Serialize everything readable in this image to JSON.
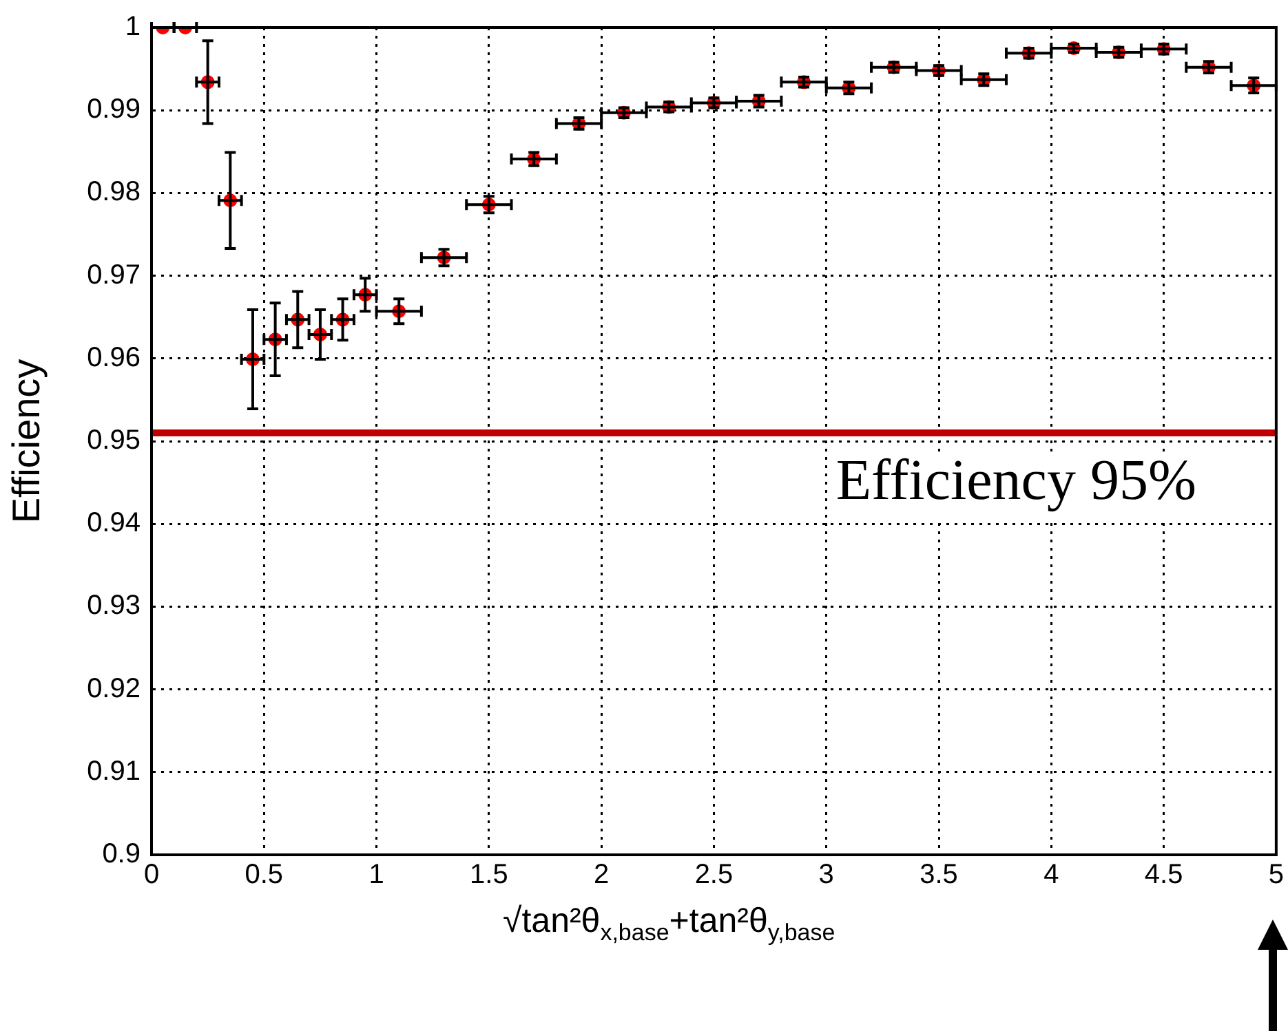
{
  "chart_data": {
    "type": "scatter",
    "xlabel": "√tan²θ$_{x,base}$+tan²θ$_{y,base}$",
    "ylabel": "Efficiency",
    "x": [
      0.05,
      0.15,
      0.25,
      0.35,
      0.45,
      0.55,
      0.65,
      0.75,
      0.85,
      0.95,
      1.1,
      1.3,
      1.5,
      1.7,
      1.9,
      2.1,
      2.3,
      2.5,
      2.7,
      2.9,
      3.1,
      3.3,
      3.5,
      3.7,
      3.9,
      4.1,
      4.3,
      4.5,
      4.7,
      4.9
    ],
    "series": [
      {
        "color": "#ff0000",
        "values": [
          1.0,
          1.0,
          0.9934,
          0.9791,
          0.9599,
          0.9623,
          0.9647,
          0.9629,
          0.9647,
          0.9677,
          0.9657,
          0.9722,
          0.9786,
          0.9841,
          0.9884,
          0.9897,
          0.9904,
          0.9909,
          0.9911,
          0.9934,
          0.9927,
          0.9952,
          0.9948,
          0.9937,
          0.9969,
          0.9975,
          0.997,
          0.9974,
          0.9952,
          0.993
        ],
        "errors": [
          null,
          null,
          0.005,
          0.0058,
          0.006,
          0.0044,
          0.0034,
          0.003,
          0.0025,
          0.002,
          0.0015,
          0.001,
          0.001,
          0.0008,
          0.0007,
          0.0006,
          0.0006,
          0.0006,
          0.0007,
          0.0006,
          0.0007,
          0.0006,
          0.0006,
          0.0007,
          0.0006,
          0.0005,
          0.0006,
          0.0006,
          0.0007,
          0.0009
        ],
        "xerrors": [
          0.05,
          0.05,
          0.05,
          0.05,
          0.05,
          0.05,
          0.05,
          0.05,
          0.05,
          0.05,
          0.1,
          0.1,
          0.1,
          0.1,
          0.1,
          0.1,
          0.1,
          0.1,
          0.1,
          0.1,
          0.1,
          0.1,
          0.1,
          0.1,
          0.1,
          0.1,
          0.1,
          0.1,
          0.1,
          0.1
        ]
      }
    ],
    "xlim": [
      0,
      5
    ],
    "xticks": [
      0,
      0.5,
      1,
      1.5,
      2,
      2.5,
      3,
      3.5,
      4,
      4.5,
      5
    ],
    "ylim": [
      0.9,
      1
    ],
    "yticks": [
      0.9,
      0.91,
      0.92,
      0.93,
      0.94,
      0.95,
      0.96,
      0.97,
      0.98,
      0.99,
      1
    ],
    "ref_lines": [
      {
        "axis": "y",
        "value": 0.951,
        "label": "Efficiency 95%",
        "color": "#c00000"
      }
    ],
    "grid": true,
    "marker": "circle",
    "legend": false
  }
}
